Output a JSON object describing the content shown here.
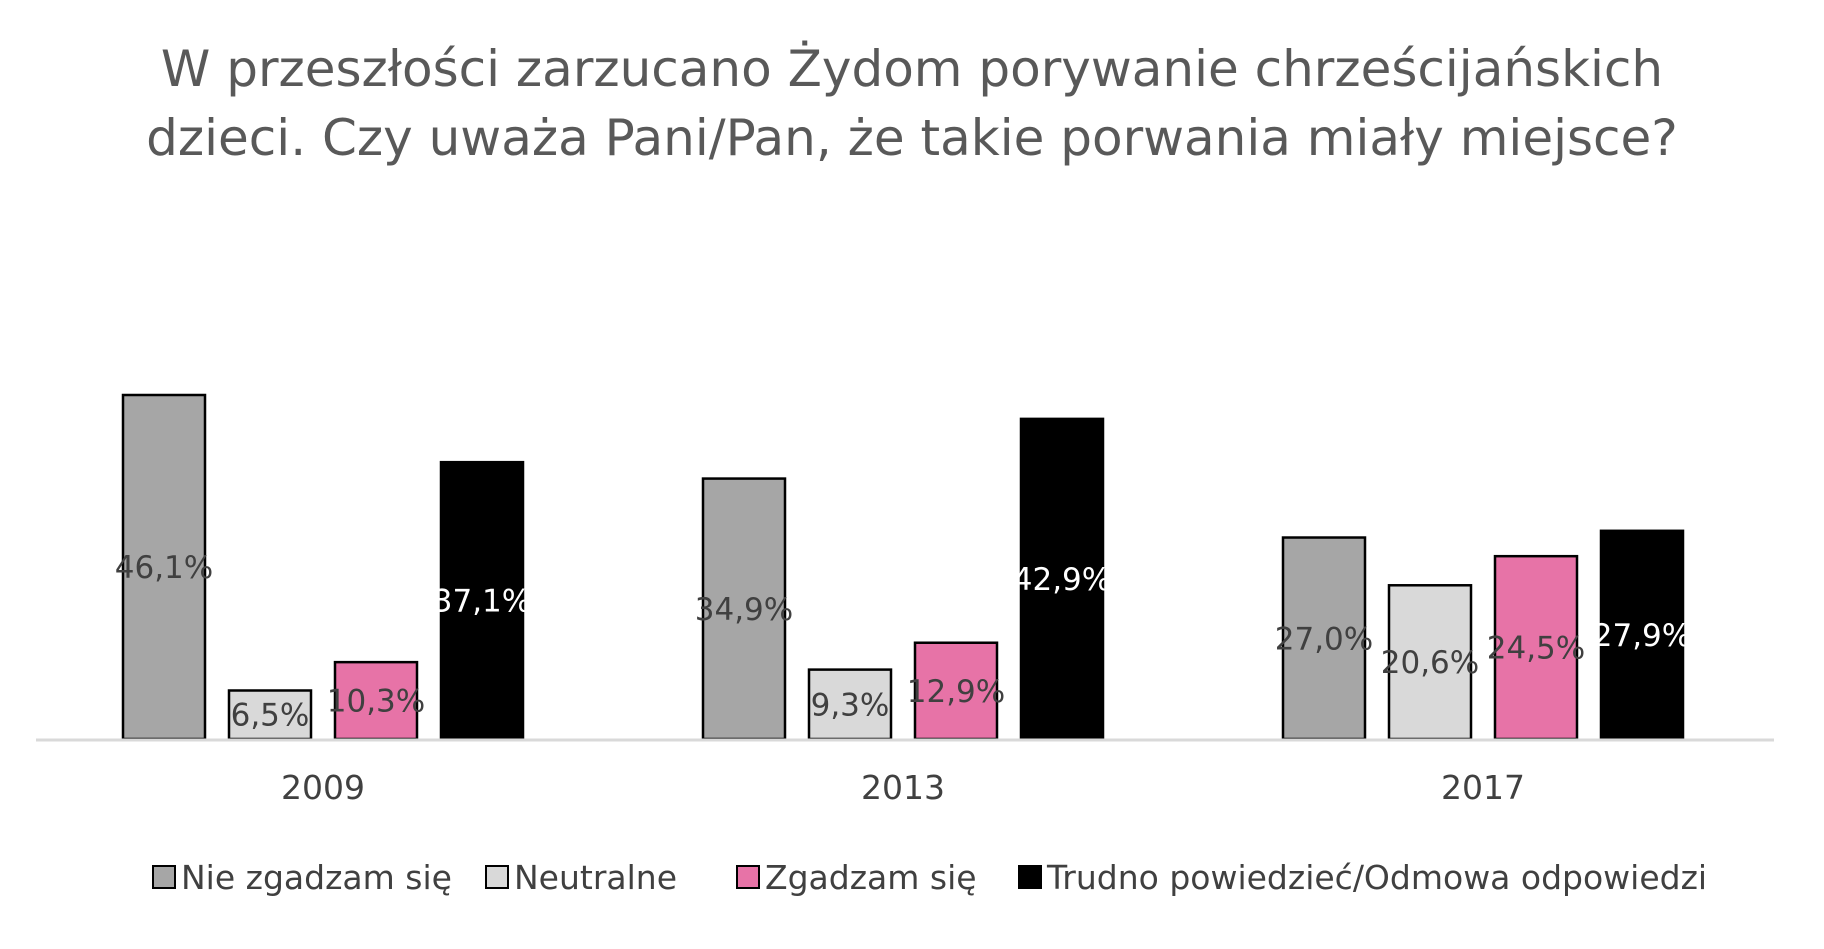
{
  "chart_data": {
    "type": "bar",
    "title": "W przeszłości zarzucano Żydom porywanie chrześcijańskich dzieci. Czy uważa Pani/Pan, że takie porwania miały miejsce?",
    "title_lines": [
      "W przeszłości zarzucano Żydom porywanie chrześcijańskich",
      "dzieci. Czy uważa Pani/Pan, że takie porwania miały miejsce?"
    ],
    "categories": [
      "2009",
      "2013",
      "2017"
    ],
    "series": [
      {
        "name": "Nie zgadzam się",
        "values": [
          46.1,
          34.9,
          27.0
        ],
        "labels": [
          "46,1%",
          "34,9%",
          "27,0%"
        ],
        "color": "#a6a6a6",
        "label_color": "#404040"
      },
      {
        "name": "Neutralne",
        "values": [
          6.5,
          9.3,
          20.6
        ],
        "labels": [
          "6,5%",
          "9,3%",
          "20,6%"
        ],
        "color": "#d9d9d9",
        "label_color": "#404040"
      },
      {
        "name": "Zgadzam się",
        "values": [
          10.3,
          12.9,
          24.5
        ],
        "labels": [
          "10,3%",
          "12,9%",
          "24,5%"
        ],
        "color": "#e773a7",
        "label_color": "#404040"
      },
      {
        "name": "Trudno powiedzieć/Odmowa odpowiedzi",
        "values": [
          37.1,
          42.9,
          27.9
        ],
        "labels": [
          "37,1%",
          "42,9%",
          "27,9%"
        ],
        "color": "#000000",
        "label_color": "#ffffff"
      }
    ],
    "ylim": [
      0,
      50
    ],
    "grid": false,
    "legend_position": "bottom",
    "xlabel": "",
    "ylabel": ""
  }
}
